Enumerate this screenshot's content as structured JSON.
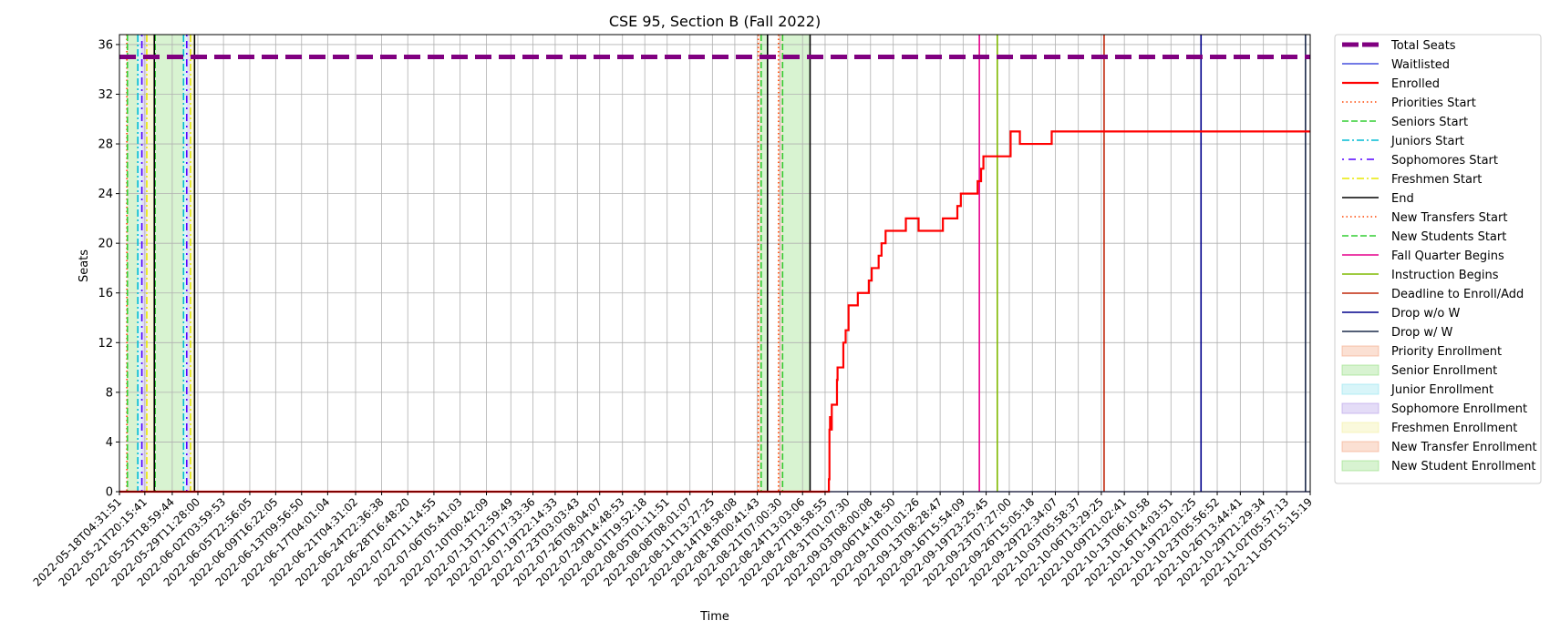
{
  "chart_data": {
    "type": "line",
    "title": "CSE 95, Section B (Fall 2022)",
    "xlabel": "Time",
    "ylabel": "Seats",
    "ylim": [
      0,
      36.8
    ],
    "yticks": [
      0,
      4,
      8,
      12,
      16,
      20,
      24,
      28,
      32,
      36
    ],
    "xlim": [
      "2022-05-18T04:31:51",
      "2022-11-05T15:15:19"
    ],
    "xticks": [
      "2022-05-18T04:31:51",
      "2022-05-21T20:15:41",
      "2022-05-25T18:59:44",
      "2022-05-29T11:28:00",
      "2022-06-02T03:59:53",
      "2022-06-05T22:56:05",
      "2022-06-09T16:22:05",
      "2022-06-13T09:56:50",
      "2022-06-17T04:01:04",
      "2022-06-21T04:31:02",
      "2022-06-24T22:36:38",
      "2022-06-28T16:48:20",
      "2022-07-02T11:14:55",
      "2022-07-06T05:41:03",
      "2022-07-10T00:42:09",
      "2022-07-13T12:59:49",
      "2022-07-16T17:33:36",
      "2022-07-19T22:14:33",
      "2022-07-23T03:03:43",
      "2022-07-26T08:04:07",
      "2022-07-29T14:48:53",
      "2022-08-01T19:52:18",
      "2022-08-05T01:11:51",
      "2022-08-08T08:01:07",
      "2022-08-11T13:27:25",
      "2022-08-14T18:58:08",
      "2022-08-18T00:41:43",
      "2022-08-21T07:00:30",
      "2022-08-24T13:03:06",
      "2022-08-27T18:58:55",
      "2022-08-31T01:07:30",
      "2022-09-03T08:00:08",
      "2022-09-06T14:18:50",
      "2022-09-10T01:01:26",
      "2022-09-13T08:28:47",
      "2022-09-16T15:54:09",
      "2022-09-19T23:25:45",
      "2022-09-23T07:27:00",
      "2022-09-26T15:05:18",
      "2022-09-29T22:34:07",
      "2022-10-03T05:58:37",
      "2022-10-06T13:29:25",
      "2022-10-09T21:02:41",
      "2022-10-13T06:10:58",
      "2022-10-16T14:03:51",
      "2022-10-19T22:01:25",
      "2022-10-23T05:56:52",
      "2022-10-26T13:44:41",
      "2022-10-29T21:29:34",
      "2022-11-02T05:57:13",
      "2022-11-05T15:15:19"
    ],
    "grid": true,
    "legend_position": "outside-right",
    "series": [
      {
        "name": "Total Seats",
        "style": "dashed",
        "color": "#800080",
        "points": [
          [
            "2022-05-18T04:31:51",
            35
          ],
          [
            "2022-11-05T15:15:19",
            35
          ]
        ]
      },
      {
        "name": "Waitlisted",
        "style": "solid",
        "color": "#1f2bd6",
        "points": [
          [
            "2022-05-18T04:31:51",
            0
          ],
          [
            "2022-11-05T15:15:19",
            0
          ]
        ]
      },
      {
        "name": "Enrolled",
        "style": "step",
        "color": "#ff0000",
        "points": [
          [
            "2022-05-18T04:31:51",
            0
          ],
          [
            "2022-08-28T06:00:00",
            0
          ],
          [
            "2022-08-28T08:00:00",
            1
          ],
          [
            "2022-08-28T10:00:00",
            5
          ],
          [
            "2022-08-28T12:00:00",
            6
          ],
          [
            "2022-08-28T14:00:00",
            5
          ],
          [
            "2022-08-28T18:00:00",
            7
          ],
          [
            "2022-08-29T12:00:00",
            9
          ],
          [
            "2022-08-29T14:00:00",
            10
          ],
          [
            "2022-08-30T10:00:00",
            12
          ],
          [
            "2022-08-30T18:00:00",
            13
          ],
          [
            "2022-08-31T04:00:00",
            15
          ],
          [
            "2022-09-01T12:00:00",
            16
          ],
          [
            "2022-09-03T02:00:00",
            17
          ],
          [
            "2022-09-03T12:00:00",
            18
          ],
          [
            "2022-09-04T12:00:00",
            19
          ],
          [
            "2022-09-04T22:00:00",
            20
          ],
          [
            "2022-09-05T12:00:00",
            21
          ],
          [
            "2022-09-08T10:00:00",
            22
          ],
          [
            "2022-09-10T06:00:00",
            21
          ],
          [
            "2022-09-13T18:00:00",
            22
          ],
          [
            "2022-09-15T20:00:00",
            23
          ],
          [
            "2022-09-16T08:00:00",
            24
          ],
          [
            "2022-09-18T18:00:00",
            25
          ],
          [
            "2022-09-19T06:00:00",
            26
          ],
          [
            "2022-09-19T14:00:00",
            27
          ],
          [
            "2022-09-23T12:00:00",
            29
          ],
          [
            "2022-09-24T20:00:00",
            28
          ],
          [
            "2022-09-29T10:00:00",
            29
          ],
          [
            "2022-11-05T15:15:19",
            29
          ]
        ]
      }
    ],
    "vlines": [
      {
        "name": "Priorities Start",
        "style": "dotted",
        "color": "#ff4500",
        "x": [
          "2022-05-19T06:00:00",
          "2022-08-18T04:00:00"
        ]
      },
      {
        "name": "Seniors Start",
        "style": "dashed",
        "color": "#32cd32",
        "x": [
          "2022-05-19T08:00:00",
          "2022-05-23T08:00:00",
          "2022-08-18T14:00:00"
        ]
      },
      {
        "name": "Juniors Start",
        "style": "dashdot",
        "color": "#00bcd4",
        "x": [
          "2022-05-20T20:00:00",
          "2022-05-27T10:00:00"
        ]
      },
      {
        "name": "Sophomores Start",
        "style": "dashdot2",
        "color": "#5500ff",
        "x": [
          "2022-05-21T10:00:00",
          "2022-05-27T21:00:00"
        ]
      },
      {
        "name": "Freshmen Start",
        "style": "dashdot",
        "color": "#e8e800",
        "x": [
          "2022-05-22T03:00:00",
          "2022-05-28T10:00:00"
        ]
      },
      {
        "name": "End",
        "style": "solid",
        "color": "#000000",
        "x": [
          "2022-05-23T05:00:00",
          "2022-05-29T00:00:00",
          "2022-08-19T12:00:00",
          "2022-08-25T15:00:00"
        ]
      },
      {
        "name": "New Transfers Start",
        "style": "dotted",
        "color": "#ff4500",
        "x": [
          "2022-08-21T02:00:00"
        ]
      },
      {
        "name": "New Students Start",
        "style": "dashed",
        "color": "#32cd32",
        "x": [
          "2022-08-21T16:00:00"
        ]
      },
      {
        "name": "Fall Quarter Begins",
        "style": "solid",
        "color": "#e6008c",
        "x": [
          "2022-09-19T00:00:00"
        ]
      },
      {
        "name": "Instruction Begins",
        "style": "solid",
        "color": "#7fba00",
        "x": [
          "2022-09-21T14:00:00"
        ]
      },
      {
        "name": "Deadline to Enroll/Add",
        "style": "solid",
        "color": "#c0280c",
        "x": [
          "2022-10-06T23:00:00"
        ]
      },
      {
        "name": "Drop w/o W",
        "style": "solid",
        "color": "#00008b",
        "x": [
          "2022-10-20T22:00:00"
        ]
      },
      {
        "name": "Drop w/ W",
        "style": "solid",
        "color": "#1c2a4a",
        "x": [
          "2022-11-04T23:00:00"
        ]
      }
    ],
    "spans": [
      {
        "name": "Priority Enrollment",
        "color": "#f4a582",
        "ranges": [
          [
            "2022-05-19T06:00:00",
            "2022-05-19T08:00:00"
          ],
          [
            "2022-08-18T04:00:00",
            "2022-08-18T14:00:00"
          ]
        ]
      },
      {
        "name": "Senior Enrollment",
        "color": "#8fdd7a",
        "ranges": [
          [
            "2022-05-19T08:00:00",
            "2022-05-20T20:00:00"
          ],
          [
            "2022-05-23T08:00:00",
            "2022-05-27T10:00:00"
          ],
          [
            "2022-08-18T14:00:00",
            "2022-08-19T12:00:00"
          ]
        ]
      },
      {
        "name": "Junior Enrollment",
        "color": "#8ee3ee",
        "ranges": [
          [
            "2022-05-20T20:00:00",
            "2022-05-21T10:00:00"
          ],
          [
            "2022-05-27T10:00:00",
            "2022-05-27T21:00:00"
          ]
        ]
      },
      {
        "name": "Sophomore Enrollment",
        "color": "#b39ae8",
        "ranges": [
          [
            "2022-05-21T10:00:00",
            "2022-05-22T03:00:00"
          ],
          [
            "2022-05-27T21:00:00",
            "2022-05-28T10:00:00"
          ]
        ]
      },
      {
        "name": "Freshmen Enrollment",
        "color": "#f2ee9c",
        "ranges": [
          [
            "2022-05-22T03:00:00",
            "2022-05-23T05:00:00"
          ],
          [
            "2022-05-28T10:00:00",
            "2022-05-29T00:00:00"
          ]
        ]
      },
      {
        "name": "New Transfer Enrollment",
        "color": "#f4a582",
        "ranges": [
          [
            "2022-08-21T02:00:00",
            "2022-08-21T16:00:00"
          ]
        ]
      },
      {
        "name": "New Student Enrollment",
        "color": "#8fdd7a",
        "ranges": [
          [
            "2022-08-21T16:00:00",
            "2022-08-25T15:00:00"
          ]
        ]
      }
    ]
  }
}
